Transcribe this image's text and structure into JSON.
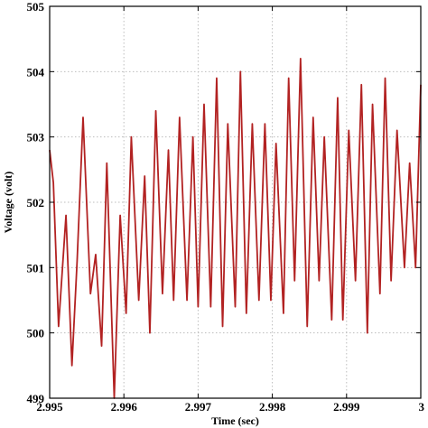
{
  "chart_data": {
    "type": "line",
    "title": "",
    "xlabel": "Time (sec)",
    "ylabel": "Voltage (volt)",
    "xlim": [
      2.995,
      3.0
    ],
    "ylim": [
      499,
      505
    ],
    "grid": true,
    "x_ticks": [
      2.995,
      2.996,
      2.997,
      2.998,
      2.999,
      3.0
    ],
    "x_tick_labels": [
      "2.995",
      "2.996",
      "2.997",
      "2.998",
      "2.999",
      "3"
    ],
    "y_ticks": [
      499,
      500,
      501,
      502,
      503,
      504,
      505
    ],
    "y_tick_labels": [
      "499",
      "500",
      "501",
      "502",
      "503",
      "504",
      "505"
    ],
    "series": [
      {
        "color": "#b22222",
        "x": [
          2.995,
          2.99505,
          2.99512,
          2.99522,
          2.9953,
          2.99537,
          2.99545,
          2.99555,
          2.99562,
          2.9957,
          2.99577,
          2.99587,
          2.99595,
          2.99603,
          2.9961,
          2.9962,
          2.99628,
          2.99635,
          2.99643,
          2.99652,
          2.9966,
          2.99667,
          2.99675,
          2.99685,
          2.99693,
          2.997,
          2.99708,
          2.99717,
          2.99725,
          2.99733,
          2.9974,
          2.9975,
          2.99757,
          2.99765,
          2.99773,
          2.99782,
          2.9979,
          2.99798,
          2.99805,
          2.99815,
          2.99822,
          2.9983,
          2.99838,
          2.99847,
          2.99855,
          2.99863,
          2.9987,
          2.9988,
          2.99888,
          2.99895,
          2.99903,
          2.99912,
          2.9992,
          2.99928,
          2.99935,
          2.99945,
          2.99952,
          2.9996,
          2.99968,
          2.99978,
          2.99985,
          2.99993,
          3.0
        ],
        "y": [
          502.8,
          502.3,
          500.1,
          501.8,
          499.5,
          501.1,
          503.3,
          500.6,
          501.2,
          499.8,
          502.6,
          499.0,
          501.8,
          500.3,
          503.0,
          500.5,
          502.4,
          500.0,
          503.4,
          500.6,
          502.8,
          500.5,
          503.3,
          500.5,
          503.0,
          500.4,
          503.5,
          500.4,
          503.9,
          500.1,
          503.2,
          500.4,
          504.0,
          500.3,
          503.2,
          500.5,
          503.2,
          500.5,
          502.9,
          500.3,
          503.9,
          500.8,
          504.2,
          500.1,
          503.3,
          500.8,
          503.0,
          500.2,
          503.6,
          500.2,
          503.1,
          500.8,
          503.8,
          500.0,
          503.5,
          500.6,
          503.9,
          500.8,
          503.1,
          501.0,
          502.6,
          501.0,
          503.8
        ]
      }
    ]
  }
}
